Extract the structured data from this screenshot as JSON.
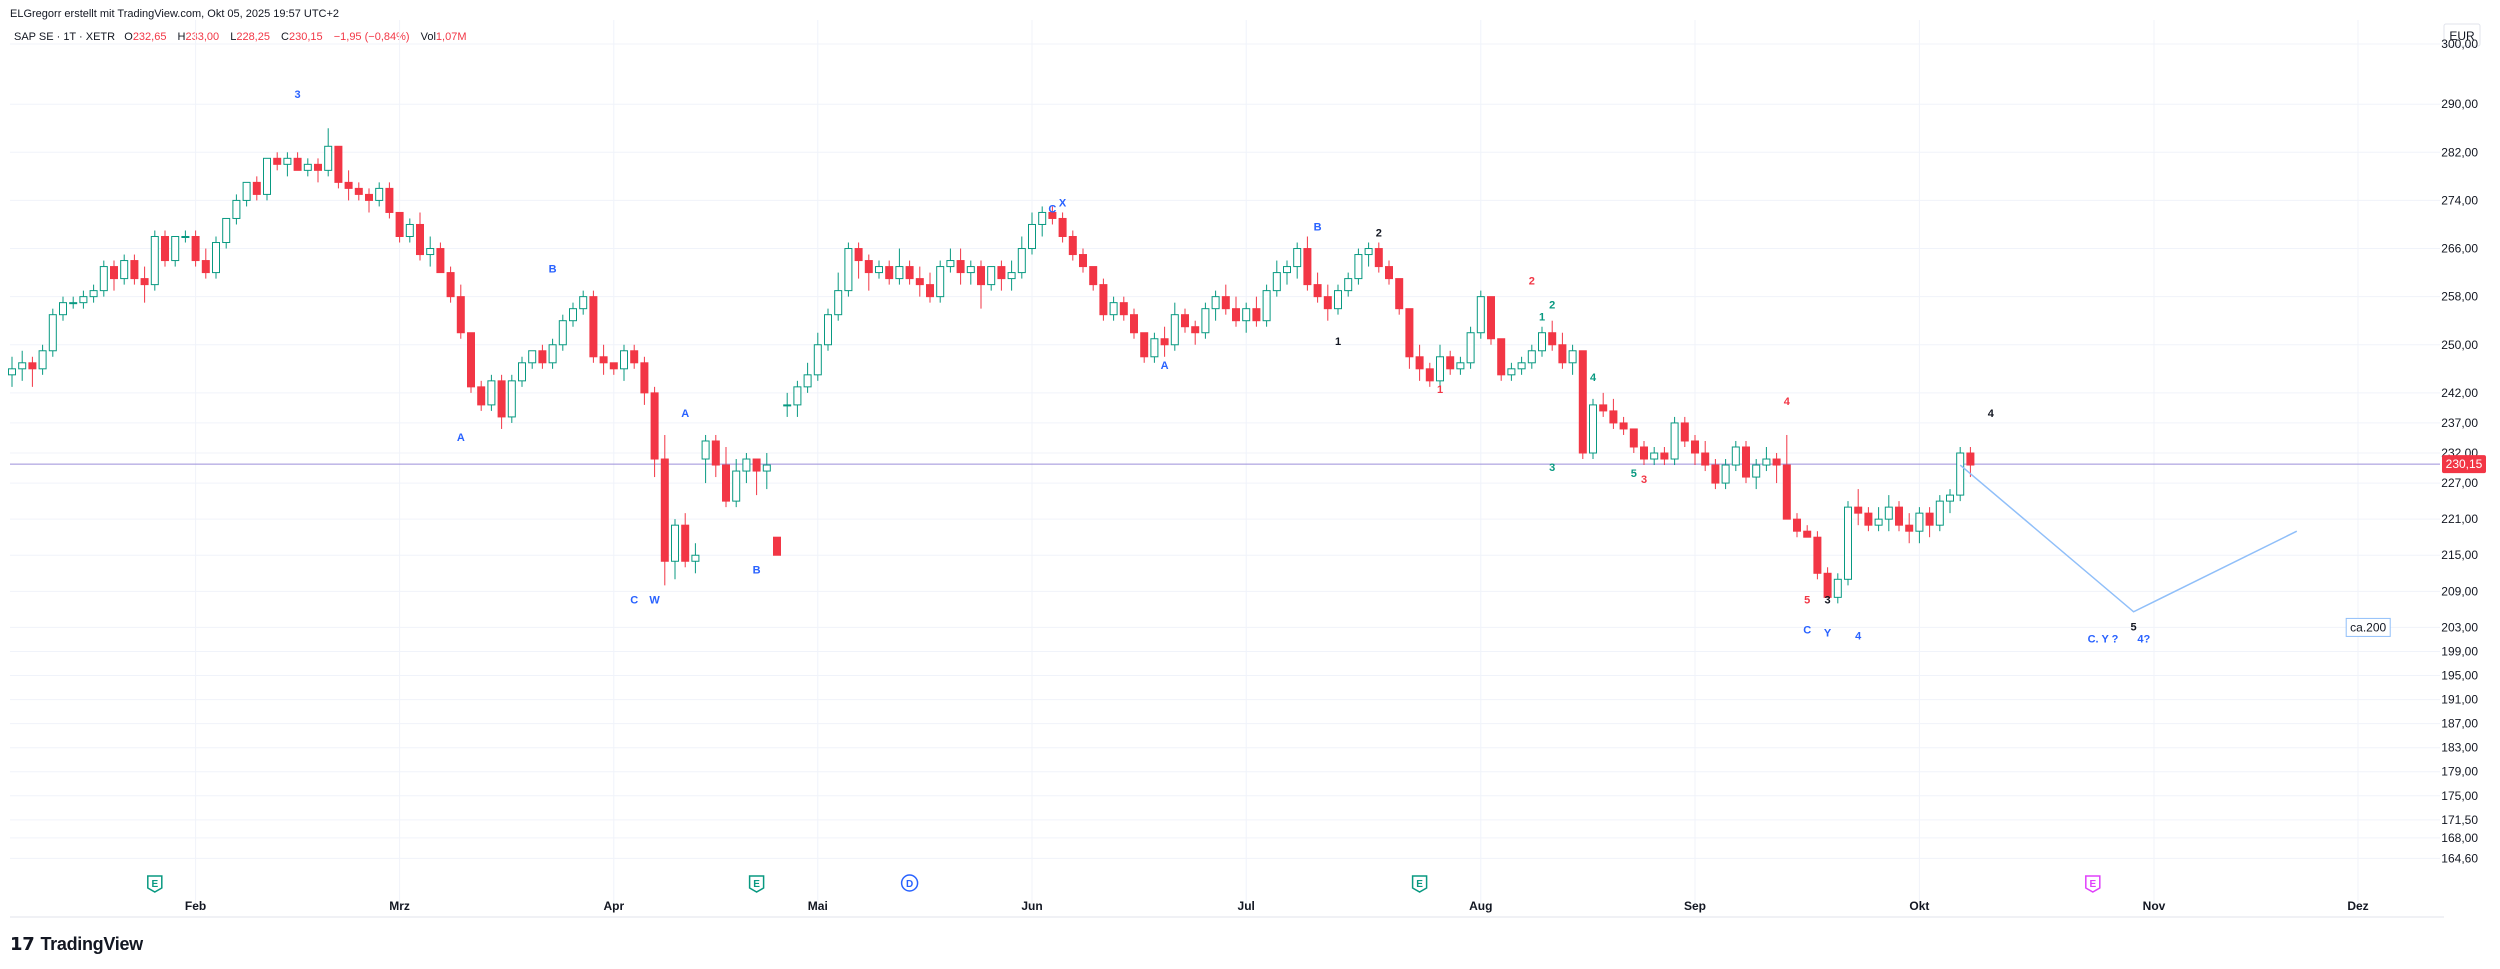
{
  "header": {
    "author_line": "ELGregorr erstellt mit TradingView.com, Okt 05, 2025 19:57 UTC+2"
  },
  "legend": {
    "symbol": "SAP SE · 1T · XETR",
    "o_label": "O",
    "o_value": "232,65",
    "h_label": "H",
    "h_value": "233,00",
    "l_label": "L",
    "l_value": "228,25",
    "c_label": "C",
    "c_value": "230,15",
    "change": "−1,95 (−0,84%)",
    "vol_label": "Vol",
    "vol_value": "1,07M"
  },
  "currency": "EUR",
  "footer": {
    "brand": "TradingView"
  },
  "colors": {
    "up": "#089981",
    "down": "#f23645",
    "wave_blue": "#2962ff",
    "wave_red": "#f23645",
    "wave_black": "#131722",
    "wave_teal": "#089981",
    "projection": "#90bff9",
    "price_line": "#9c8fd9"
  },
  "chart_data": {
    "type": "candlestick",
    "title": "",
    "ylim": [
      161,
      304
    ],
    "y_ticks": [
      {
        "v": 300,
        "t": "300,00"
      },
      {
        "v": 290,
        "t": "290,00"
      },
      {
        "v": 282,
        "t": "282,00"
      },
      {
        "v": 274,
        "t": "274,00"
      },
      {
        "v": 266,
        "t": "266,00"
      },
      {
        "v": 258,
        "t": "258,00"
      },
      {
        "v": 250,
        "t": "250,00"
      },
      {
        "v": 242,
        "t": "242,00"
      },
      {
        "v": 237,
        "t": "237,00"
      },
      {
        "v": 232,
        "t": "232,00"
      },
      {
        "v": 227,
        "t": "227,00"
      },
      {
        "v": 221,
        "t": "221,00"
      },
      {
        "v": 215,
        "t": "215,00"
      },
      {
        "v": 209,
        "t": "209,00"
      },
      {
        "v": 203,
        "t": "203,00"
      },
      {
        "v": 199,
        "t": "199,00"
      },
      {
        "v": 195,
        "t": "195,00"
      },
      {
        "v": 191,
        "t": "191,00"
      },
      {
        "v": 187,
        "t": "187,00"
      },
      {
        "v": 183,
        "t": "183,00"
      },
      {
        "v": 179,
        "t": "179,00"
      },
      {
        "v": 175,
        "t": "175,00"
      },
      {
        "v": 171,
        "t": "171,50"
      },
      {
        "v": 168,
        "t": "168,00"
      },
      {
        "v": 164.6,
        "t": "164,60"
      }
    ],
    "x_ticks": [
      {
        "i": 18,
        "t": "Feb"
      },
      {
        "i": 38,
        "t": "Mrz"
      },
      {
        "i": 59,
        "t": "Apr"
      },
      {
        "i": 79,
        "t": "Mai"
      },
      {
        "i": 100,
        "t": "Jun"
      },
      {
        "i": 121,
        "t": "Jul"
      },
      {
        "i": 144,
        "t": "Aug"
      },
      {
        "i": 165,
        "t": "Sep"
      },
      {
        "i": 187,
        "t": "Okt"
      },
      {
        "i": 210,
        "t": "Nov"
      },
      {
        "i": 230,
        "t": "Dez"
      }
    ],
    "last_price": {
      "v": 230.15,
      "t": "230,15"
    },
    "ohlc": [
      [
        245,
        248,
        243,
        246
      ],
      [
        246,
        249,
        244,
        247
      ],
      [
        247,
        248,
        243,
        246
      ],
      [
        246,
        250,
        245,
        249
      ],
      [
        249,
        256,
        248,
        255
      ],
      [
        255,
        258,
        254,
        257
      ],
      [
        257,
        258,
        256,
        257
      ],
      [
        257,
        259,
        256,
        258
      ],
      [
        258,
        260,
        257,
        259
      ],
      [
        259,
        264,
        258,
        263
      ],
      [
        263,
        264,
        259,
        261
      ],
      [
        261,
        265,
        260,
        264
      ],
      [
        264,
        265,
        260,
        261
      ],
      [
        261,
        263,
        257,
        260
      ],
      [
        260,
        269,
        259,
        268
      ],
      [
        268,
        269,
        263,
        264
      ],
      [
        264,
        268,
        263,
        268
      ],
      [
        268,
        269,
        267,
        268
      ],
      [
        268,
        269,
        263,
        264
      ],
      [
        264,
        266,
        261,
        262
      ],
      [
        262,
        268,
        261,
        267
      ],
      [
        267,
        271,
        266,
        271
      ],
      [
        271,
        275,
        270,
        274
      ],
      [
        274,
        277,
        273,
        277
      ],
      [
        277,
        278,
        274,
        275
      ],
      [
        275,
        281,
        274,
        281
      ],
      [
        281,
        282,
        279,
        280
      ],
      [
        280,
        282,
        278,
        281
      ],
      [
        281,
        282,
        279,
        279
      ],
      [
        279,
        281,
        278,
        280
      ],
      [
        280,
        281,
        277,
        279
      ],
      [
        279,
        286,
        278,
        283
      ],
      [
        283,
        283,
        276,
        277
      ],
      [
        277,
        279,
        274,
        276
      ],
      [
        276,
        277,
        274,
        275
      ],
      [
        275,
        276,
        272,
        274
      ],
      [
        274,
        277,
        273,
        276
      ],
      [
        276,
        277,
        271,
        272
      ],
      [
        272,
        272,
        267,
        268
      ],
      [
        268,
        271,
        267,
        270
      ],
      [
        270,
        272,
        264,
        265
      ],
      [
        265,
        268,
        263,
        266
      ],
      [
        266,
        267,
        262,
        262
      ],
      [
        262,
        263,
        257,
        258
      ],
      [
        258,
        260,
        251,
        252
      ],
      [
        252,
        252,
        242,
        243
      ],
      [
        243,
        244,
        239,
        240
      ],
      [
        240,
        245,
        239,
        244
      ],
      [
        244,
        245,
        236,
        238
      ],
      [
        238,
        245,
        237,
        244
      ],
      [
        244,
        248,
        243,
        247
      ],
      [
        247,
        249,
        246,
        249
      ],
      [
        249,
        250,
        246,
        247
      ],
      [
        247,
        251,
        246,
        250
      ],
      [
        250,
        255,
        249,
        254
      ],
      [
        254,
        257,
        253,
        256
      ],
      [
        256,
        259,
        255,
        258
      ],
      [
        258,
        259,
        247,
        248
      ],
      [
        248,
        250,
        245,
        247
      ],
      [
        247,
        247,
        245,
        246
      ],
      [
        246,
        250,
        244,
        249
      ],
      [
        249,
        250,
        246,
        247
      ],
      [
        247,
        248,
        240,
        242
      ],
      [
        242,
        243,
        228,
        231
      ],
      [
        231,
        235,
        210,
        214
      ],
      [
        214,
        221,
        211,
        220
      ],
      [
        220,
        222,
        213,
        214
      ],
      [
        214,
        217,
        212,
        215
      ],
      [
        231,
        235,
        227,
        234
      ],
      [
        234,
        235,
        228,
        230
      ],
      [
        230,
        233,
        223,
        224
      ],
      [
        224,
        231,
        223,
        229
      ],
      [
        229,
        232,
        227,
        231
      ],
      [
        231,
        231,
        225,
        229
      ],
      [
        229,
        232,
        226,
        230
      ],
      [
        218,
        218,
        215,
        215
      ],
      [
        240,
        242,
        238,
        240
      ],
      [
        240,
        244,
        238,
        243
      ],
      [
        243,
        247,
        242,
        245
      ],
      [
        245,
        252,
        244,
        250
      ],
      [
        250,
        256,
        249,
        255
      ],
      [
        255,
        262,
        254,
        259
      ],
      [
        259,
        267,
        258,
        266
      ],
      [
        266,
        267,
        261,
        264
      ],
      [
        264,
        265,
        259,
        262
      ],
      [
        262,
        264,
        261,
        263
      ],
      [
        263,
        264,
        260,
        261
      ],
      [
        261,
        266,
        260,
        263
      ],
      [
        263,
        264,
        260,
        261
      ],
      [
        261,
        263,
        258,
        260
      ],
      [
        260,
        262,
        257,
        258
      ],
      [
        258,
        264,
        257,
        263
      ],
      [
        263,
        266,
        262,
        264
      ],
      [
        264,
        266,
        260,
        262
      ],
      [
        262,
        264,
        260,
        263
      ],
      [
        263,
        264,
        256,
        260
      ],
      [
        260,
        263,
        259,
        263
      ],
      [
        263,
        264,
        259,
        261
      ],
      [
        261,
        264,
        259,
        262
      ],
      [
        262,
        268,
        261,
        266
      ],
      [
        266,
        272,
        265,
        270
      ],
      [
        270,
        273,
        268,
        272
      ],
      [
        272,
        273,
        270,
        271
      ],
      [
        271,
        272,
        267,
        268
      ],
      [
        268,
        269,
        264,
        265
      ],
      [
        265,
        266,
        262,
        263
      ],
      [
        263,
        263,
        259,
        260
      ],
      [
        260,
        261,
        254,
        255
      ],
      [
        255,
        258,
        254,
        257
      ],
      [
        257,
        258,
        254,
        255
      ],
      [
        255,
        256,
        251,
        252
      ],
      [
        252,
        252,
        247,
        248
      ],
      [
        248,
        252,
        247,
        251
      ],
      [
        251,
        253,
        248,
        250
      ],
      [
        250,
        257,
        249,
        255
      ],
      [
        255,
        256,
        252,
        253
      ],
      [
        253,
        254,
        250,
        252
      ],
      [
        252,
        257,
        251,
        256
      ],
      [
        256,
        259,
        254,
        258
      ],
      [
        258,
        260,
        255,
        256
      ],
      [
        256,
        258,
        253,
        254
      ],
      [
        254,
        257,
        252,
        256
      ],
      [
        256,
        258,
        253,
        254
      ],
      [
        254,
        260,
        253,
        259
      ],
      [
        259,
        264,
        258,
        262
      ],
      [
        262,
        264,
        260,
        263
      ],
      [
        263,
        267,
        261,
        266
      ],
      [
        266,
        268,
        259,
        260
      ],
      [
        260,
        262,
        257,
        258
      ],
      [
        258,
        260,
        254,
        256
      ],
      [
        256,
        260,
        255,
        259
      ],
      [
        259,
        262,
        258,
        261
      ],
      [
        261,
        266,
        260,
        265
      ],
      [
        265,
        267,
        263,
        266
      ],
      [
        266,
        267,
        262,
        263
      ],
      [
        263,
        264,
        260,
        261
      ],
      [
        261,
        261,
        255,
        256
      ],
      [
        256,
        256,
        246,
        248
      ],
      [
        248,
        250,
        244,
        246
      ],
      [
        246,
        247,
        243,
        244
      ],
      [
        244,
        250,
        243,
        248
      ],
      [
        248,
        249,
        245,
        246
      ],
      [
        246,
        248,
        245,
        247
      ],
      [
        247,
        253,
        246,
        252
      ],
      [
        252,
        259,
        251,
        258
      ],
      [
        258,
        258,
        250,
        251
      ],
      [
        251,
        251,
        244,
        245
      ],
      [
        245,
        247,
        244,
        246
      ],
      [
        246,
        248,
        245,
        247
      ],
      [
        247,
        250,
        246,
        249
      ],
      [
        249,
        253,
        248,
        252
      ],
      [
        252,
        254,
        249,
        250
      ],
      [
        250,
        252,
        246,
        247
      ],
      [
        247,
        250,
        245,
        249
      ],
      [
        249,
        249,
        231,
        232
      ],
      [
        232,
        241,
        231,
        240
      ],
      [
        240,
        242,
        238,
        239
      ],
      [
        239,
        241,
        236,
        237
      ],
      [
        237,
        238,
        235,
        236
      ],
      [
        236,
        236,
        232,
        233
      ],
      [
        233,
        234,
        230,
        231
      ],
      [
        231,
        233,
        230,
        232
      ],
      [
        232,
        233,
        230,
        231
      ],
      [
        231,
        238,
        230,
        237
      ],
      [
        237,
        238,
        233,
        234
      ],
      [
        234,
        235,
        230,
        232
      ],
      [
        232,
        234,
        229,
        230
      ],
      [
        230,
        231,
        226,
        227
      ],
      [
        227,
        231,
        226,
        230
      ],
      [
        230,
        234,
        229,
        233
      ],
      [
        233,
        234,
        227,
        228
      ],
      [
        228,
        231,
        226,
        230
      ],
      [
        230,
        233,
        229,
        231
      ],
      [
        231,
        232,
        227,
        230
      ],
      [
        230,
        235,
        221,
        221
      ],
      [
        221,
        222,
        218,
        219
      ],
      [
        219,
        220,
        218,
        218
      ],
      [
        218,
        219,
        211,
        212
      ],
      [
        212,
        213,
        208,
        208
      ],
      [
        208,
        212,
        207,
        211
      ],
      [
        211,
        224,
        210,
        223
      ],
      [
        223,
        226,
        220,
        222
      ],
      [
        222,
        223,
        219,
        220
      ],
      [
        220,
        223,
        219,
        221
      ],
      [
        221,
        225,
        219,
        223
      ],
      [
        223,
        224,
        219,
        220
      ],
      [
        220,
        222,
        217,
        219
      ],
      [
        219,
        223,
        217,
        222
      ],
      [
        222,
        223,
        218,
        220
      ],
      [
        220,
        225,
        219,
        224
      ],
      [
        224,
        226,
        222,
        225
      ],
      [
        225,
        233,
        224,
        232
      ],
      [
        232,
        233,
        228,
        230
      ]
    ],
    "projection": [
      {
        "i": 191,
        "v": 230
      },
      {
        "i": 208,
        "v": 205.6
      },
      {
        "i": 224,
        "v": 219
      }
    ],
    "annotations": [
      {
        "i": 28,
        "v": 291,
        "t": "3",
        "c": "blue"
      },
      {
        "i": 44,
        "v": 234,
        "t": "A",
        "c": "blue"
      },
      {
        "i": 53,
        "v": 262,
        "t": "B",
        "c": "blue"
      },
      {
        "i": 61,
        "v": 207,
        "t": "C",
        "c": "blue"
      },
      {
        "i": 63,
        "v": 207,
        "t": "W",
        "c": "blue"
      },
      {
        "i": 66,
        "v": 238,
        "t": "A",
        "c": "blue"
      },
      {
        "i": 73,
        "v": 212,
        "t": "B",
        "c": "blue"
      },
      {
        "i": 102,
        "v": 272,
        "t": "C",
        "c": "blue"
      },
      {
        "i": 103,
        "v": 273,
        "t": "X",
        "c": "blue"
      },
      {
        "i": 113,
        "v": 246,
        "t": "A",
        "c": "blue"
      },
      {
        "i": 128,
        "v": 269,
        "t": "B",
        "c": "blue"
      },
      {
        "i": 130,
        "v": 250,
        "t": "1",
        "c": "black"
      },
      {
        "i": 134,
        "v": 268,
        "t": "2",
        "c": "black"
      },
      {
        "i": 140,
        "v": 242,
        "t": "1",
        "c": "red"
      },
      {
        "i": 149,
        "v": 260,
        "t": "2",
        "c": "red"
      },
      {
        "i": 150,
        "v": 254,
        "t": "1",
        "c": "teal"
      },
      {
        "i": 151,
        "v": 256,
        "t": "2",
        "c": "teal"
      },
      {
        "i": 151,
        "v": 229,
        "t": "3",
        "c": "teal"
      },
      {
        "i": 155,
        "v": 244,
        "t": "4",
        "c": "teal"
      },
      {
        "i": 159,
        "v": 228,
        "t": "5",
        "c": "teal"
      },
      {
        "i": 160,
        "v": 227,
        "t": "3",
        "c": "red"
      },
      {
        "i": 174,
        "v": 240,
        "t": "4",
        "c": "red"
      },
      {
        "i": 176,
        "v": 207,
        "t": "5",
        "c": "red"
      },
      {
        "i": 178,
        "v": 207,
        "t": "3",
        "c": "black"
      },
      {
        "i": 176,
        "v": 202,
        "t": "C",
        "c": "blue"
      },
      {
        "i": 178,
        "v": 201.5,
        "t": "Y",
        "c": "blue"
      },
      {
        "i": 181,
        "v": 201,
        "t": "4",
        "c": "blue"
      },
      {
        "i": 194,
        "v": 238,
        "t": "4",
        "c": "black"
      },
      {
        "i": 208,
        "v": 202.5,
        "t": "5",
        "c": "black"
      },
      {
        "i": 205,
        "v": 200.5,
        "t": "C. Y ?",
        "c": "blue"
      },
      {
        "i": 209,
        "v": 200.5,
        "t": "4?",
        "c": "blue"
      }
    ],
    "target_box": {
      "i": 231,
      "v": 203,
      "t": "ca.200"
    },
    "events": [
      {
        "i": 14,
        "t": "E",
        "c": "#089981",
        "shape": "tag"
      },
      {
        "i": 73,
        "t": "E",
        "c": "#089981",
        "shape": "tag"
      },
      {
        "i": 88,
        "t": "D",
        "c": "#2962ff",
        "shape": "circle"
      },
      {
        "i": 138,
        "t": "E",
        "c": "#089981",
        "shape": "tag"
      },
      {
        "i": 204,
        "t": "E",
        "c": "#e040fb",
        "shape": "tag"
      }
    ]
  }
}
